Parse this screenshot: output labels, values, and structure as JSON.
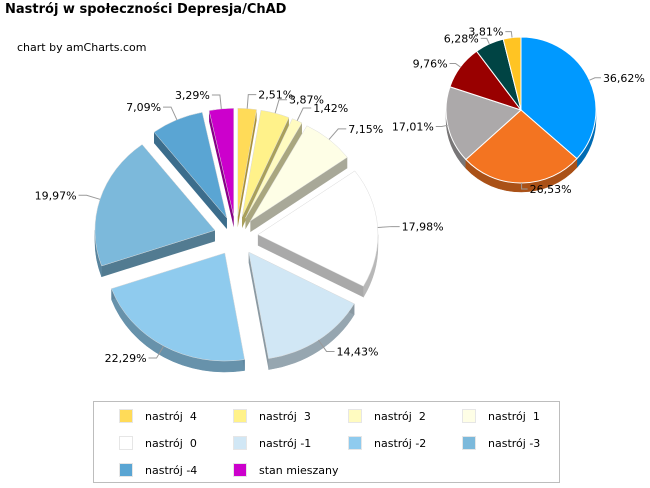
{
  "title": "Nastrój w społeczności Depresja/ChAD",
  "credit": "chart by amCharts.com",
  "chart_data": [
    {
      "type": "pie",
      "title": "Nastrój w społeczności Depresja/ChAD",
      "style": "3d-exploded",
      "slices": [
        {
          "label": "nastrój  4",
          "value": 2.51,
          "value_label": "2,51%",
          "color": "#FFDB58"
        },
        {
          "label": "nastrój  3",
          "value": 3.87,
          "value_label": "3,87%",
          "color": "#FFF28A"
        },
        {
          "label": "nastrój  2",
          "value": 1.42,
          "value_label": "1,42%",
          "color": "#FFFBC0"
        },
        {
          "label": "nastrój  1",
          "value": 7.15,
          "value_label": "7,15%",
          "color": "#FEFEE6"
        },
        {
          "label": "nastrój  0",
          "value": 17.98,
          "value_label": "17,98%",
          "color": "#FFFFFF"
        },
        {
          "label": "nastrój -1",
          "value": 14.43,
          "value_label": "14,43%",
          "color": "#D1E7F5"
        },
        {
          "label": "nastrój -2",
          "value": 22.29,
          "value_label": "22,29%",
          "color": "#8FCBEE"
        },
        {
          "label": "nastrój -3",
          "value": 19.97,
          "value_label": "19,97%",
          "color": "#7CB9DB"
        },
        {
          "label": "nastrój -4",
          "value": 7.09,
          "value_label": "7,09%",
          "color": "#5AA5D3"
        },
        {
          "label": "stan mieszany",
          "value": 3.29,
          "value_label": "3,29%",
          "color": "#CC00CC"
        }
      ]
    },
    {
      "type": "pie",
      "style": "3d",
      "slices": [
        {
          "value": 36.62,
          "value_label": "36,62%",
          "color": "#0099FF"
        },
        {
          "value": 26.53,
          "value_label": "26,53%",
          "color": "#F37421"
        },
        {
          "value": 17.01,
          "value_label": "17,01%",
          "color": "#ACA9AA"
        },
        {
          "value": 9.76,
          "value_label": "9,76%",
          "color": "#990000"
        },
        {
          "value": 6.28,
          "value_label": "6,28%",
          "color": "#004444"
        },
        {
          "value": 3.81,
          "value_label": "3,81%",
          "color": "#FFC423"
        }
      ]
    }
  ]
}
